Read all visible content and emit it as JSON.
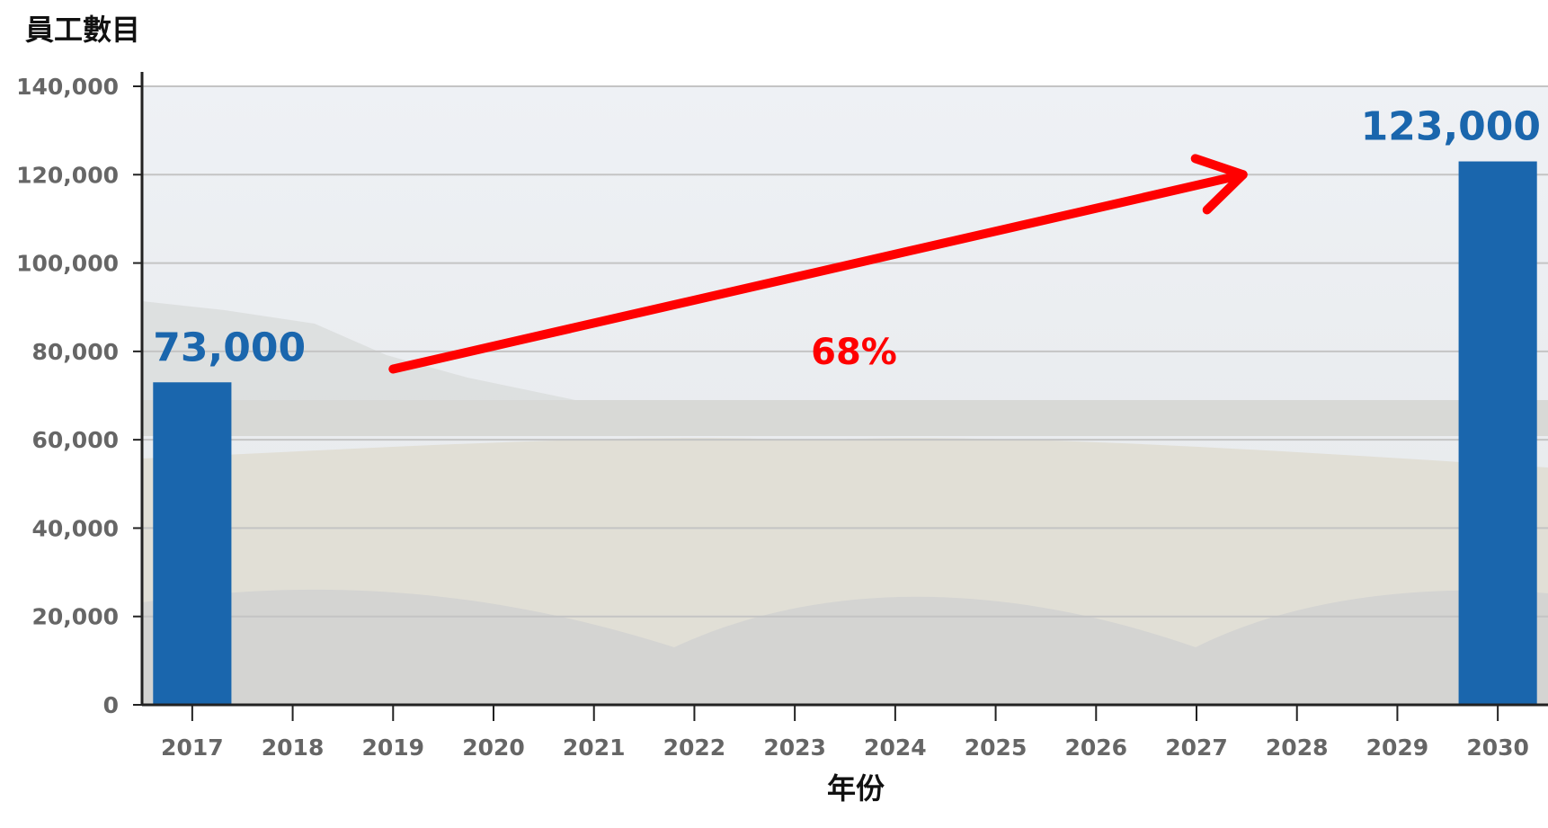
{
  "chart_data": {
    "type": "bar",
    "ylabel": "員工數目",
    "xlabel": "年份",
    "categories": [
      "2017",
      "2018",
      "2019",
      "2020",
      "2021",
      "2022",
      "2023",
      "2024",
      "2025",
      "2026",
      "2027",
      "2028",
      "2029",
      "2030"
    ],
    "series": [
      {
        "values": [
          73000,
          null,
          null,
          null,
          null,
          null,
          null,
          null,
          null,
          null,
          null,
          null,
          null,
          123000
        ]
      }
    ],
    "data_labels": {
      "2017": "73,000",
      "2030": "123,000"
    },
    "ylim": [
      0,
      140000
    ],
    "yticks": [
      0,
      20000,
      40000,
      60000,
      80000,
      100000,
      120000,
      140000
    ],
    "ytick_labels": [
      "0",
      "20,000",
      "40,000",
      "60,000",
      "80,000",
      "100,000",
      "120,000",
      "140,000"
    ],
    "annotation": {
      "text": "68%",
      "from_category": "2019",
      "to_category": "2028",
      "from_value": 76000,
      "to_value": 120000
    },
    "grid": true,
    "colors": {
      "bar": "#1a66ad",
      "label": "#1a66ad",
      "annotation": "#ff0000",
      "tick_text": "#666666",
      "grid": "#c4c4c4"
    }
  }
}
